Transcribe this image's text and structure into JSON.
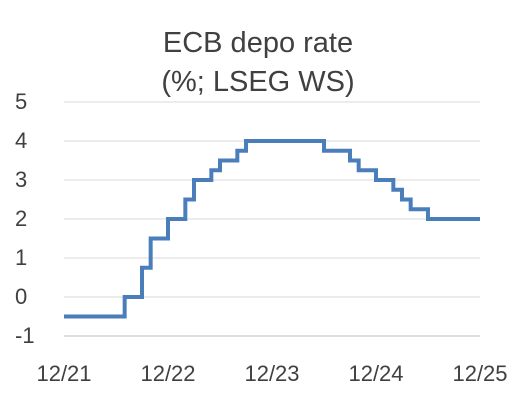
{
  "chart_data": {
    "type": "line",
    "title": "ECB depo rate",
    "subtitle": "(%; LSEG WS)",
    "xlabel": "",
    "ylabel": "",
    "x_tick_labels": [
      "12/21",
      "12/22",
      "12/23",
      "12/24",
      "12/25"
    ],
    "y_tick_labels": [
      "5",
      "4",
      "3",
      "2",
      "1",
      "0",
      "-1"
    ],
    "ylim": [
      -1,
      5
    ],
    "grid": "horizontal",
    "legend": "none",
    "colors": {
      "series": "#4a7ebb",
      "text": "#404040",
      "grid": "#d9d9d9"
    },
    "series": [
      {
        "step": "post",
        "points": [
          {
            "x": "2021-12",
            "y": -0.5
          },
          {
            "x": "2022-07",
            "y": 0.0
          },
          {
            "x": "2022-09",
            "y": 0.75
          },
          {
            "x": "2022-10",
            "y": 1.5
          },
          {
            "x": "2022-12",
            "y": 2.0
          },
          {
            "x": "2023-02",
            "y": 2.5
          },
          {
            "x": "2023-03",
            "y": 3.0
          },
          {
            "x": "2023-05",
            "y": 3.25
          },
          {
            "x": "2023-06",
            "y": 3.5
          },
          {
            "x": "2023-08",
            "y": 3.75
          },
          {
            "x": "2023-09",
            "y": 4.0
          },
          {
            "x": "2024-06",
            "y": 3.75
          },
          {
            "x": "2024-09",
            "y": 3.5
          },
          {
            "x": "2024-10",
            "y": 3.25
          },
          {
            "x": "2024-12",
            "y": 3.0
          },
          {
            "x": "2025-02",
            "y": 2.75
          },
          {
            "x": "2025-03",
            "y": 2.5
          },
          {
            "x": "2025-04",
            "y": 2.25
          },
          {
            "x": "2025-06",
            "y": 2.0
          },
          {
            "x": "2025-12",
            "y": 2.0
          }
        ]
      }
    ]
  }
}
